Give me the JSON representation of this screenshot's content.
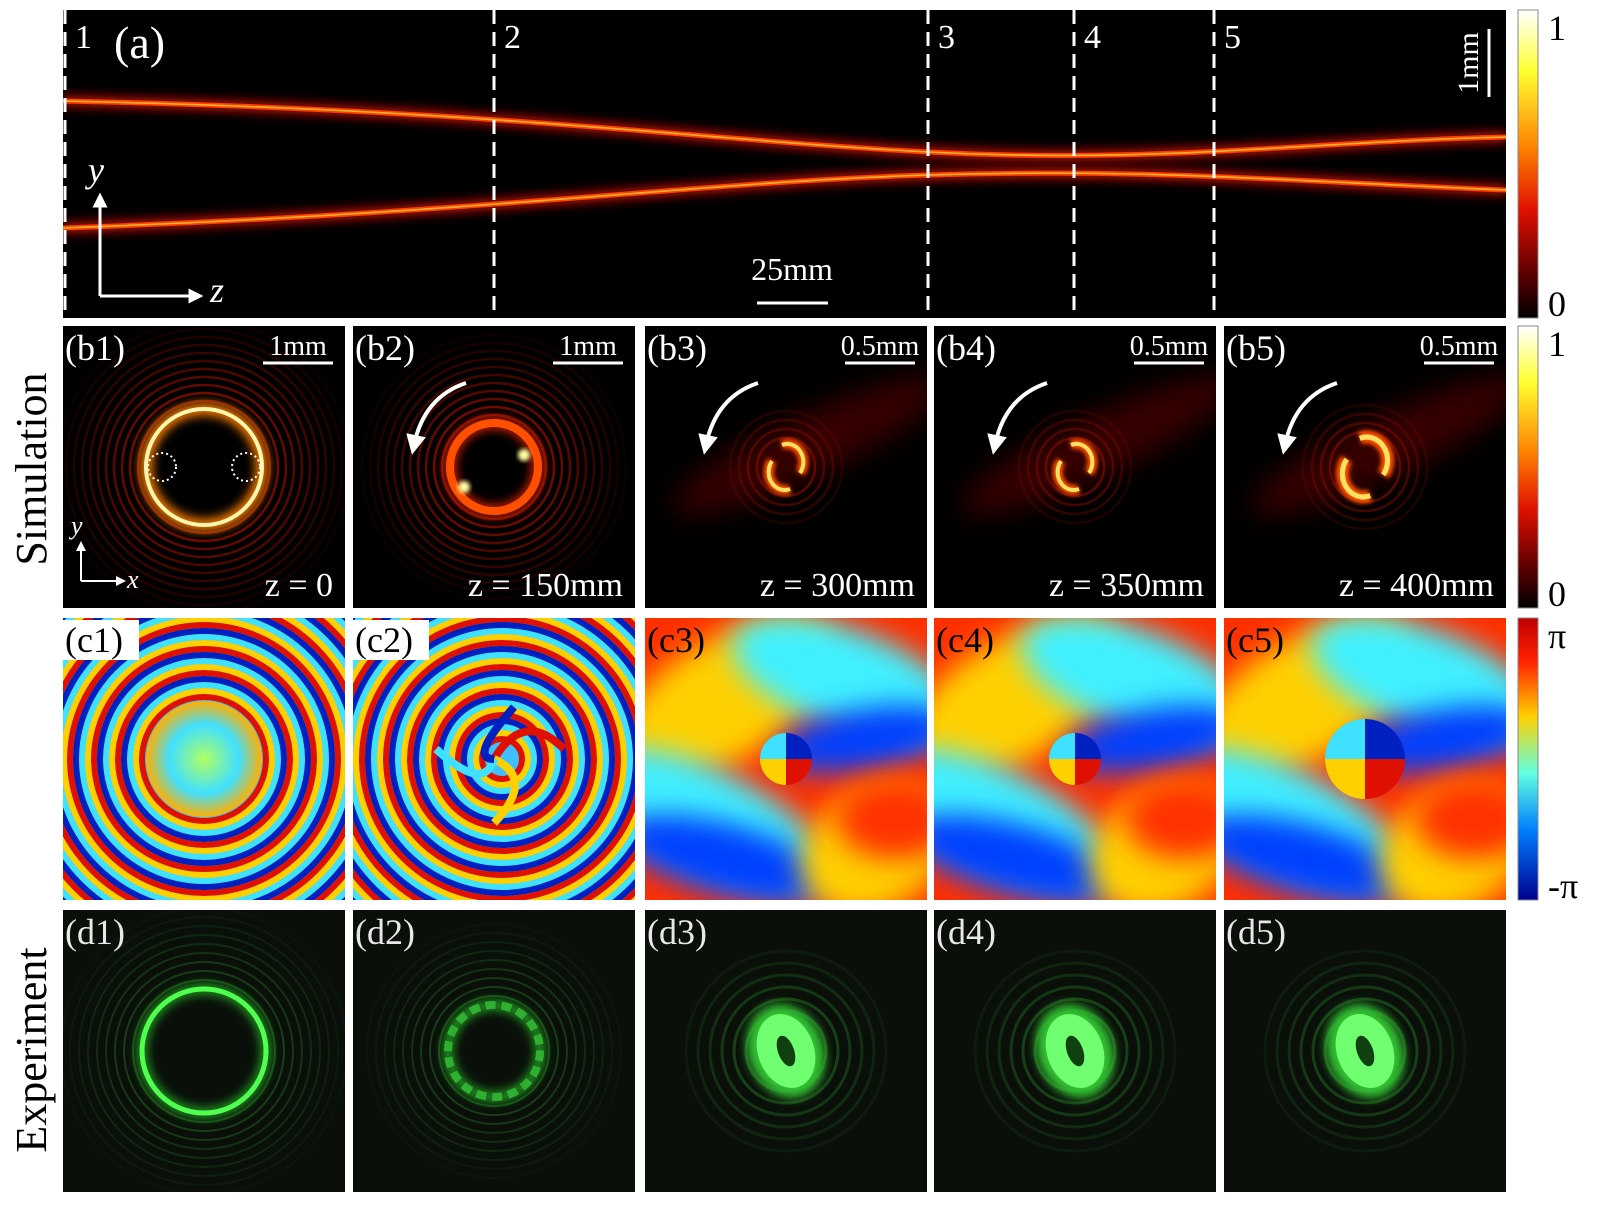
{
  "panel_a": {
    "label": "(a)",
    "sections": [
      "1",
      "2",
      "3",
      "4",
      "5"
    ],
    "scale_z": "25mm",
    "scale_y": "1mm",
    "axis_y": "y",
    "axis_z": "z"
  },
  "colorbars": [
    {
      "top": "1",
      "bottom": "0"
    },
    {
      "top": "1",
      "bottom": "0"
    },
    {
      "top": "π",
      "bottom": "-π"
    }
  ],
  "row_labels": [
    "Simulation",
    "Experiment"
  ],
  "simulation_intensity": [
    {
      "label": "(b1)",
      "scale": "1mm",
      "position": "z = 0"
    },
    {
      "label": "(b2)",
      "scale": "1mm",
      "position": "z = 150mm"
    },
    {
      "label": "(b3)",
      "scale": "0.5mm",
      "position": "z = 300mm"
    },
    {
      "label": "(b4)",
      "scale": "0.5mm",
      "position": "z = 350mm"
    },
    {
      "label": "(b5)",
      "scale": "0.5mm",
      "position": "z = 400mm"
    }
  ],
  "simulation_axes": {
    "y": "y",
    "x": "x"
  },
  "simulation_phase": [
    "(c1)",
    "(c2)",
    "(c3)",
    "(c4)",
    "(c5)"
  ],
  "experiment": [
    "(d1)",
    "(d2)",
    "(d3)",
    "(d4)",
    "(d5)"
  ]
}
